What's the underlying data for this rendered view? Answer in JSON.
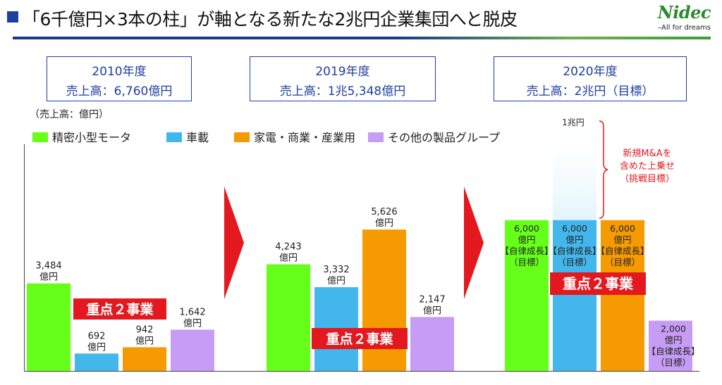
{
  "header": {
    "title": "「6千億円×3本の柱」が軸となる新たな2兆円企業集団へと脱皮",
    "logo_text": "Nidec",
    "logo_tagline": "–All for dreams"
  },
  "year_boxes": [
    {
      "year": "2010年度",
      "sales": "売上高：6,760億円"
    },
    {
      "year": "2019年度",
      "sales": "売上高：1兆5,348億円"
    },
    {
      "year": "2020年度",
      "sales": "売上高：2兆円（目標）"
    }
  ],
  "colors": {
    "precision_motor": "#66ff1a",
    "automotive": "#43b7ec",
    "appliance_commercial_industrial": "#f59a00",
    "other_products": "#c79cf5",
    "focus_badge": "#e3191f",
    "arrow": "#e3191f",
    "annotation": "#e3191f"
  },
  "chart_data": {
    "type": "bar",
    "ylabel": "（売上高：億円）",
    "categories": [
      "2010年度",
      "2019年度",
      "2020年度"
    ],
    "series": [
      {
        "name": "精密小型モータ",
        "color": "#66ff1a",
        "values": [
          3484,
          4243,
          6000
        ],
        "labels": [
          "3,484\n億円",
          "4,243\n億円",
          "6,000\n億円\n【自律成長】\n（目標）"
        ]
      },
      {
        "name": "車載",
        "color": "#43b7ec",
        "values": [
          692,
          3332,
          6000
        ],
        "labels": [
          "692\n億円",
          "3,332\n億円",
          "6,000\n億円\n【自律成長】\n（目標）"
        ]
      },
      {
        "name": "家電・商業・産業用",
        "color": "#f59a00",
        "values": [
          942,
          5626,
          6000
        ],
        "labels": [
          "942\n億円",
          "5,626\n億円",
          "6,000\n億円\n【自律成長】\n（目標）"
        ]
      },
      {
        "name": "その他の製品グループ",
        "color": "#c79cf5",
        "values": [
          1642,
          2147,
          2000
        ],
        "labels": [
          "1,642\n億円",
          "2,147\n億円",
          "2,000\n億円\n【自律成長】\n（目標）"
        ]
      }
    ],
    "extension": {
      "series_index": 1,
      "group_index": 2,
      "value": 10000,
      "label": "1兆円"
    },
    "focus_badge": "重点２事業",
    "annotation": [
      "新規M&Aを",
      "含めた上乗せ",
      "（挑戦目標）"
    ]
  }
}
